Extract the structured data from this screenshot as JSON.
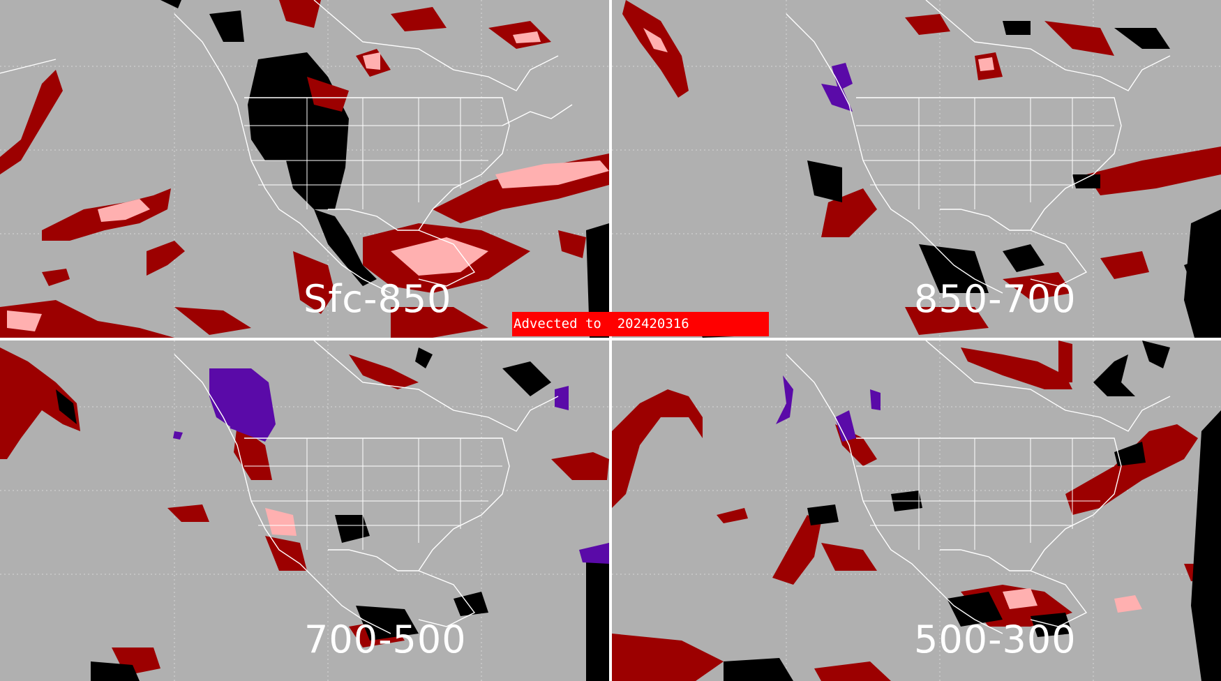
{
  "banner": {
    "text": "Advected to  202420316"
  },
  "panels": [
    {
      "id": "p1",
      "label": "Sfc-850"
    },
    {
      "id": "p2",
      "label": "850-700"
    },
    {
      "id": "p3",
      "label": "700-500"
    },
    {
      "id": "p4",
      "label": "500-300"
    }
  ],
  "colors": {
    "background": "#b0b0b0",
    "divider": "#ffffff",
    "coastlines": "#ffffff",
    "dark_red": "#9c0000",
    "pink": "#ffb0b0",
    "black": "#000000",
    "purple": "#5a0aa8",
    "banner": "#ff0000"
  }
}
